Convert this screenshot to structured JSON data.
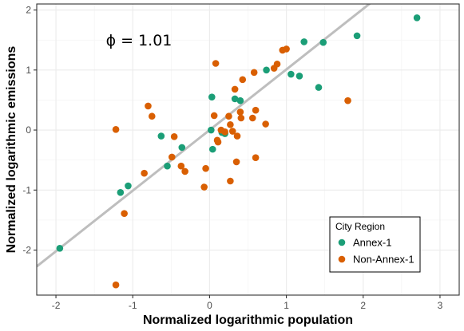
{
  "chart_data": {
    "type": "scatter",
    "xlabel": "Normalized logarithmic population",
    "ylabel": "Normalized logarithmic emissions",
    "xlim": [
      -2.25,
      3.25
    ],
    "ylim": [
      -2.75,
      2.1
    ],
    "x_ticks": [
      -2,
      -1,
      0,
      1,
      2,
      3
    ],
    "y_ticks": [
      -2,
      -1,
      0,
      1,
      2
    ],
    "grid": true,
    "annotation": "ϕ = 1.01",
    "fit_line": {
      "slope": 1.01,
      "intercept": 0.0,
      "color": "#bebebe"
    },
    "legend": {
      "title": "City Region",
      "position": "bottom-right"
    },
    "series": [
      {
        "name": "Annex-1",
        "color": "#1b9e77",
        "points": [
          [
            -1.95,
            -1.97
          ],
          [
            -1.16,
            -1.04
          ],
          [
            -1.06,
            -0.93
          ],
          [
            -0.63,
            -0.1
          ],
          [
            -0.55,
            -0.6
          ],
          [
            -0.36,
            -0.29
          ],
          [
            0.02,
            0.0
          ],
          [
            0.03,
            0.55
          ],
          [
            0.04,
            -0.32
          ],
          [
            0.16,
            -0.04
          ],
          [
            0.2,
            -0.06
          ],
          [
            0.33,
            0.52
          ],
          [
            0.4,
            0.49
          ],
          [
            0.74,
            1.0
          ],
          [
            1.06,
            0.93
          ],
          [
            1.17,
            0.9
          ],
          [
            1.23,
            1.47
          ],
          [
            1.42,
            0.71
          ],
          [
            1.48,
            1.46
          ],
          [
            1.92,
            1.57
          ],
          [
            2.7,
            1.87
          ]
        ]
      },
      {
        "name": "Non-Annex-1",
        "color": "#d95f02",
        "points": [
          [
            -1.22,
            0.01
          ],
          [
            -1.22,
            -2.58
          ],
          [
            -1.11,
            -1.39
          ],
          [
            -0.85,
            -0.72
          ],
          [
            -0.8,
            0.4
          ],
          [
            -0.75,
            0.23
          ],
          [
            -0.49,
            -0.45
          ],
          [
            -0.46,
            -0.11
          ],
          [
            -0.37,
            -0.6
          ],
          [
            -0.32,
            -0.69
          ],
          [
            -0.07,
            -0.95
          ],
          [
            -0.05,
            -0.64
          ],
          [
            0.06,
            0.24
          ],
          [
            0.08,
            1.11
          ],
          [
            0.1,
            -0.17
          ],
          [
            0.11,
            -0.2
          ],
          [
            0.15,
            0.0
          ],
          [
            0.2,
            -0.03
          ],
          [
            0.25,
            0.23
          ],
          [
            0.27,
            0.09
          ],
          [
            0.27,
            -0.85
          ],
          [
            0.3,
            -0.02
          ],
          [
            0.33,
            0.68
          ],
          [
            0.35,
            -0.53
          ],
          [
            0.36,
            -0.1
          ],
          [
            0.4,
            0.3
          ],
          [
            0.41,
            0.2
          ],
          [
            0.43,
            0.84
          ],
          [
            0.56,
            0.2
          ],
          [
            0.58,
            0.96
          ],
          [
            0.6,
            0.33
          ],
          [
            0.6,
            -0.46
          ],
          [
            0.73,
            0.1
          ],
          [
            0.84,
            1.03
          ],
          [
            0.88,
            1.1
          ],
          [
            0.95,
            1.33
          ],
          [
            1.0,
            1.35
          ],
          [
            1.8,
            0.49
          ]
        ]
      }
    ]
  }
}
